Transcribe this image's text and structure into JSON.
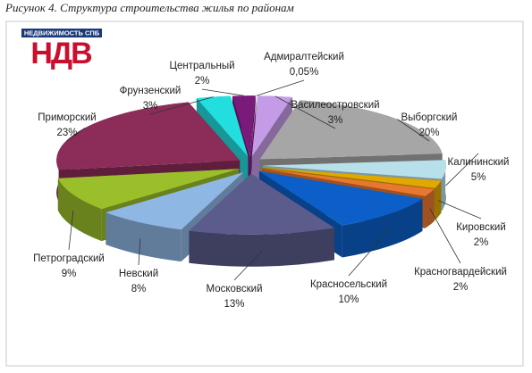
{
  "chart_data": {
    "type": "pie3d",
    "title": "Рисунок 4. Структура строительства жилья по районам",
    "logo": {
      "top": "НЕДВИЖИМОСТЬ СПБ",
      "main": "НДВ"
    },
    "categories": [
      "Адмиралтейский",
      "Василеостровский",
      "Выборгский",
      "Калининский",
      "Кировский",
      "Красногвардейский",
      "Красносельский",
      "Московский",
      "Невский",
      "Петроградский",
      "Приморский",
      "Фрунзенский",
      "Центральный"
    ],
    "values": [
      0.05,
      3,
      20,
      5,
      2,
      2,
      10,
      13,
      8,
      9,
      23,
      3,
      2
    ],
    "value_labels": [
      "0,05%",
      "3%",
      "20%",
      "5%",
      "2%",
      "2%",
      "10%",
      "13%",
      "8%",
      "9%",
      "23%",
      "3%",
      "2%"
    ],
    "colors": [
      "#e8e8f0",
      "#c49be6",
      "#a6a6a6",
      "#b7e0ea",
      "#e0a800",
      "#e87830",
      "#0c5fc8",
      "#5b5b8c",
      "#8fb7e4",
      "#9bbf2a",
      "#8c2c58",
      "#22dede",
      "#7a1a7a"
    ]
  }
}
